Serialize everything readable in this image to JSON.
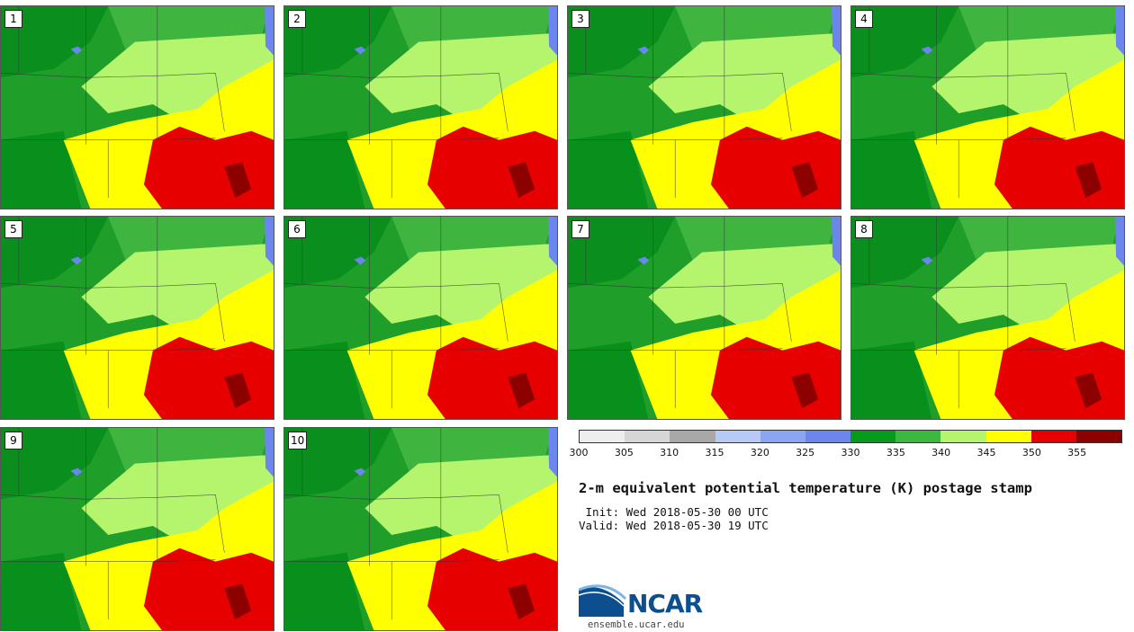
{
  "members": [
    {
      "label": "1"
    },
    {
      "label": "2"
    },
    {
      "label": "3"
    },
    {
      "label": "4"
    },
    {
      "label": "5"
    },
    {
      "label": "6"
    },
    {
      "label": "7"
    },
    {
      "label": "8"
    },
    {
      "label": "9"
    },
    {
      "label": "10"
    }
  ],
  "colorbar": {
    "ticks": [
      "300",
      "305",
      "310",
      "315",
      "320",
      "325",
      "330",
      "335",
      "340",
      "345",
      "350",
      "355"
    ],
    "colors": [
      "#eeeeee",
      "#d6d6d6",
      "#a8a8a8",
      "#b6c9f7",
      "#8aa6f2",
      "#6b86ec",
      "#079a1c",
      "#3db83f",
      "#b5f56e",
      "#ffff00",
      "#e60000",
      "#8c0000"
    ]
  },
  "title": "2-m equivalent potential temperature (K) postage stamp",
  "init": " Init: Wed 2018-05-30 00 UTC",
  "valid": "Valid: Wed 2018-05-30 19 UTC",
  "logo": {
    "text": "NCAR",
    "url": "ensemble.ucar.edu"
  }
}
